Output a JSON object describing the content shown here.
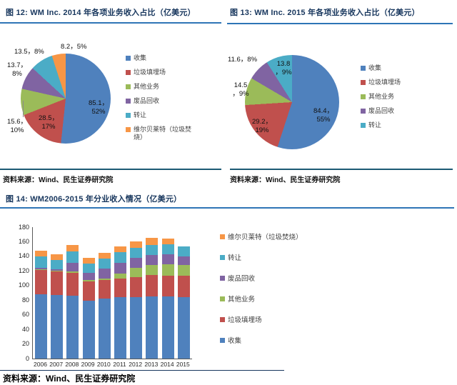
{
  "theme": {
    "title_color": "#17365D",
    "title_rule_color": "#2E75B6",
    "source_rule_color": "#1C5A74",
    "axis_color": "#595959",
    "palette": {
      "blue": "#4F81BD",
      "red": "#C0504D",
      "green": "#9BBB59",
      "purple": "#8064A2",
      "teal": "#4BACC6",
      "orange": "#F79646"
    }
  },
  "chart_data": [
    {
      "id": "figure-12",
      "type": "pie",
      "title": "图 12: WM Inc. 2014 年各项业务收入占比（亿美元）",
      "unit": "亿美元",
      "source": "资料来源：Wind、民生证券研究院",
      "legend_position": "right",
      "slices": [
        {
          "label": "收集",
          "value": 85.1,
          "percent": 52,
          "data_label": "85.1，\n52%",
          "color": "#4F81BD",
          "label_inside": true
        },
        {
          "label": "垃圾填埋场",
          "value": 28.5,
          "percent": 17,
          "data_label": "28.5，\n17%",
          "color": "#C0504D",
          "label_inside": true
        },
        {
          "label": "其他业务",
          "value": 15.6,
          "percent": 10,
          "data_label": "15.6，\n10%",
          "color": "#9BBB59",
          "label_inside": false
        },
        {
          "label": "废品回收",
          "value": 13.7,
          "percent": 8,
          "data_label": "13.7，\n8%",
          "color": "#8064A2",
          "label_inside": false
        },
        {
          "label": "转让",
          "value": 13.5,
          "percent": 8,
          "data_label": "13.5，8%",
          "color": "#4BACC6",
          "label_inside": false
        },
        {
          "label": "维尔贝莱特（垃圾焚烧）",
          "value": 8.2,
          "percent": 5,
          "data_label": "8.2，5%",
          "color": "#F79646",
          "label_inside": false
        }
      ]
    },
    {
      "id": "figure-13",
      "type": "pie",
      "title": "图 13: WM Inc. 2015 年各项业务收入占比（亿美元）",
      "unit": "亿美元",
      "source": "资料来源：Wind、民生证券研究院",
      "legend_position": "right",
      "slices": [
        {
          "label": "收集",
          "value": 84.4,
          "percent": 55,
          "data_label": "84.4，\n55%",
          "color": "#4F81BD",
          "label_inside": true
        },
        {
          "label": "垃圾填埋场",
          "value": 29.2,
          "percent": 19,
          "data_label": "29.2，\n19%",
          "color": "#C0504D",
          "label_inside": true
        },
        {
          "label": "其他业务",
          "value": 14.5,
          "percent": 9,
          "data_label": "14.5\n，9%",
          "color": "#9BBB59",
          "label_inside": false
        },
        {
          "label": "废品回收",
          "value": 11.6,
          "percent": 8,
          "data_label": "11.6，8%",
          "color": "#8064A2",
          "label_inside": false
        },
        {
          "label": "转让",
          "value": 13.8,
          "percent": 9,
          "data_label": "13.8\n，9%",
          "color": "#4BACC6",
          "label_inside": true
        }
      ]
    },
    {
      "id": "figure-14",
      "type": "bar",
      "stacked": true,
      "title": "图 14: WM2006-2015 年分业收入情况（亿美元）",
      "unit": "亿美元",
      "source": "资料来源：Wind、民生证券研究院",
      "categories": [
        "2006",
        "2007",
        "2008",
        "2009",
        "2010",
        "2011",
        "2012",
        "2013",
        "2014",
        "2015"
      ],
      "series": [
        {
          "name": "收集",
          "color": "#4F81BD",
          "values": [
            88,
            87,
            86,
            79,
            82,
            84,
            84,
            85,
            85.1,
            84.4
          ]
        },
        {
          "name": "垃圾填埋场",
          "color": "#C0504D",
          "values": [
            33,
            32,
            31,
            27,
            26,
            26,
            28,
            29,
            28.5,
            29.2
          ]
        },
        {
          "name": "其他业务",
          "color": "#9BBB59",
          "values": [
            1,
            1,
            2,
            2,
            2,
            6,
            12,
            14,
            15.6,
            14.5
          ]
        },
        {
          "name": "废品回收",
          "color": "#8064A2",
          "values": [
            2,
            2,
            12,
            9,
            13,
            15,
            14,
            14,
            13.7,
            11.6
          ]
        },
        {
          "name": "转让",
          "color": "#4BACC6",
          "values": [
            16,
            13,
            16,
            13,
            14,
            15,
            14,
            14,
            13.5,
            13.8
          ]
        },
        {
          "name": "维尔贝莱特（垃圾焚烧）",
          "color": "#F79646",
          "values": [
            8,
            8,
            9,
            8,
            8,
            8,
            8,
            9,
            8.2,
            0
          ]
        }
      ],
      "totals": [
        148,
        143,
        156,
        138,
        145,
        154,
        160,
        165,
        164.6,
        153.5
      ],
      "ylim": [
        0,
        180
      ],
      "yticks": [
        0,
        20,
        40,
        60,
        80,
        100,
        120,
        140,
        160,
        180
      ],
      "grid": false,
      "legend_position": "right",
      "legend_order_top_to_bottom": [
        "维尔贝莱特（垃圾焚烧）",
        "转让",
        "废品回收",
        "其他业务",
        "垃圾填埋场",
        "收集"
      ]
    }
  ]
}
